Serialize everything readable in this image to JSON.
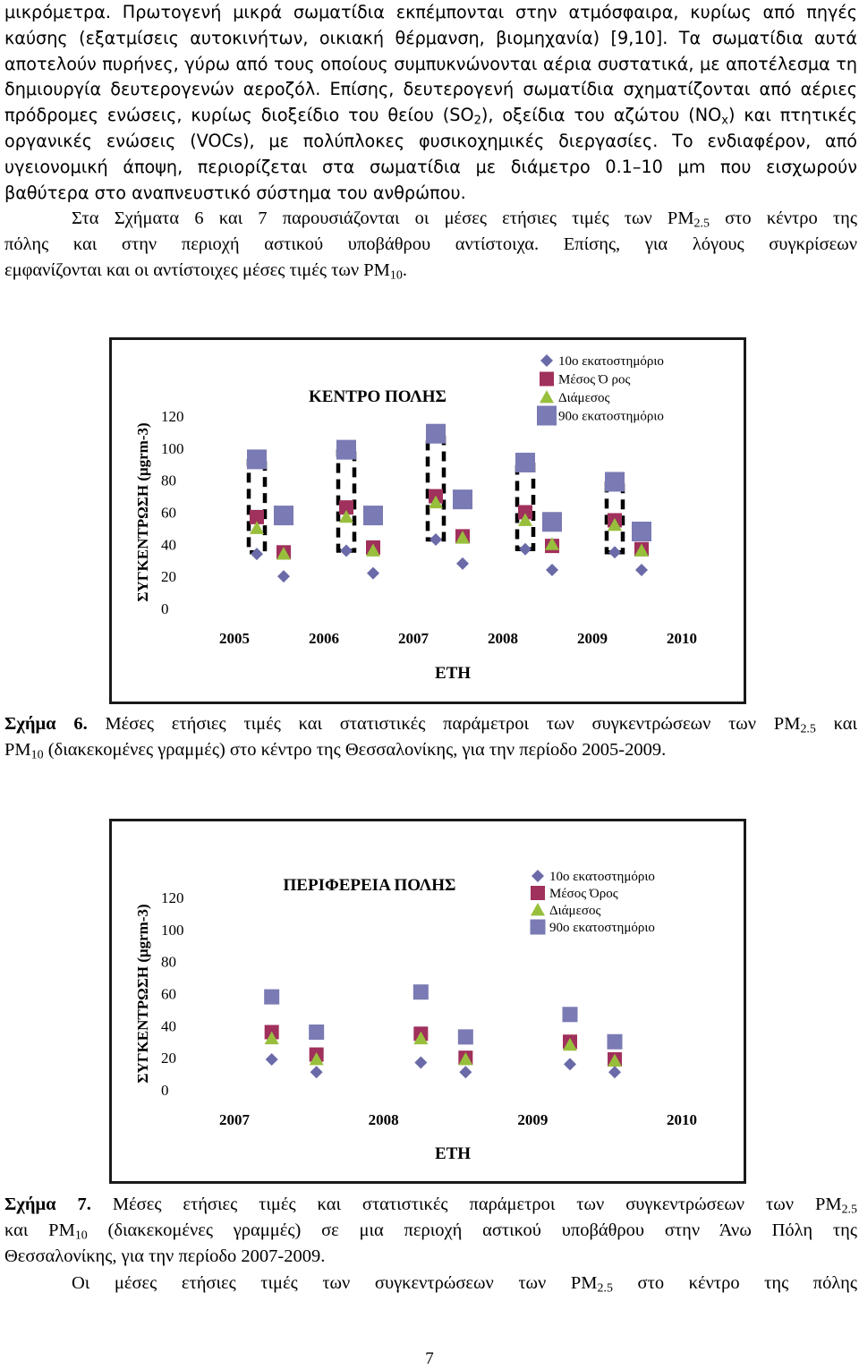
{
  "body_text": {
    "p1": {
      "l1": "μικρόμετρα. Πρωτογενή μικρά σωματίδια εκπέμπονται στην ατμόσφαιρα, κυρίως από πηγές",
      "l2": "καύσης (εξατμίσεις αυτοκινήτων, οικιακή θέρμανση, βιομηχανία) [9,10]. Τα σωματίδια αυτά",
      "l3": "αποτελούν πυρήνες, γύρω από τους οποίους συμπυκνώνονται αέρια συστατικά, με αποτέλεσμα τη",
      "l4": "δημιουργία δευτερογενών αεροζόλ. Επίσης, δευτερογενή σωματίδια σχηματίζονται από αέριες",
      "l5a": "πρόδρομες ενώσεις, κυρίως διοξείδιο του θείου (SO",
      "l5b": "2",
      "l5c": "), οξείδια του αζώτου (NO",
      "l5d": "x",
      "l5e": ") και πτητικές",
      "l6": "οργανικές ενώσεις (VOCs), με πολύπλοκες φυσικοχημικές διεργασίες. Το ενδιαφέρον, από",
      "l7": "υγειονομική άποψη, περιορίζεται στα σωματίδια με διάμετρο 0.1–10 μm που εισχωρούν",
      "l8": "βαθύτερα στο αναπνευστικό σύστημα του ανθρώπου."
    },
    "p2": {
      "l1a": "Στα Σχήματα 6 και 7 παρουσιάζονται οι μέσες ετήσιες τιμές των PM",
      "l1b": "2.5",
      "l1c": " στο κέντρο της",
      "l2": "πόλης και στην περιοχή αστικού υποβάθρου αντίστοιχα. Επίσης, για λόγους συγκρίσεων",
      "l3a": "εμφανίζονται και οι αντίστοιχες μέσες τιμές των PM",
      "l3b": "10",
      "l3c": "."
    },
    "p3": {
      "a": "Οι μέσες ετήσιες τιμές των συγκεντρώσεων των PM",
      "b": "2.5",
      "c": " στο κέντρο της πόλης"
    }
  },
  "figure6": {
    "caption_label": "Σχήμα 6.",
    "caption_a": " Μέσες ετήσιες τιμές και στατιστικές παράμετροι των συγκεντρώσεων των PM",
    "caption_b": "2.5",
    "caption_c": " και",
    "caption_d": "PM",
    "caption_e": "10",
    "caption_f": " (διακεκομένες γραμμές) στο κέντρο της Θεσσαλονίκης, για την περίοδο 2005-2009."
  },
  "figure7": {
    "caption_label": "Σχήμα 7.",
    "caption_a": " Μέσες ετήσιες τιμές και στατιστικές παράμετροι των συγκεντρώσεων των PM",
    "caption_b": "2.5",
    "caption_c": "και PM",
    "caption_d": "10",
    "caption_e": " (διακεκομένες γραμμές) σε μια περιοχή αστικού υποβάθρου στην Άνω Πόλη της",
    "caption_f": "Θεσσαλονίκης, για την περίοδο 2007-2009."
  },
  "page_number": "7",
  "colors": {
    "p10": "#6a6aa8",
    "mean": "#a0305c",
    "median": "#98bf3c",
    "p90": "#7a7ab4",
    "dash": "#000000"
  },
  "chart_data": [
    {
      "type": "scatter",
      "title": "ΚΕΝΤΡΟ ΠΟΛΗΣ",
      "xlabel": "ΕΤΗ",
      "ylabel": "ΣΥΓΚΕΝΤΡΩΣΗ (μgrm-3)",
      "x_ticks": [
        "2005",
        "2006",
        "2007",
        "2008",
        "2009",
        "2010"
      ],
      "y_ticks": [
        "0",
        "20",
        "40",
        "60",
        "80",
        "100",
        "120"
      ],
      "xlim": [
        2005,
        2010
      ],
      "ylim": [
        0,
        120
      ],
      "legend_position": "top-right",
      "legend": [
        "10ο εκατοστημόριο",
        "Μέσος Ό ρος",
        "Διάμεσος",
        "90ο εκατοστημόριο"
      ],
      "x": [
        2005.25,
        2005.55,
        2006.25,
        2006.55,
        2007.25,
        2007.55,
        2008.25,
        2008.55,
        2009.25,
        2009.55
      ],
      "series": [
        {
          "name": "10ο εκατοστημόριο",
          "marker": "diamond",
          "values": [
            34,
            20,
            36,
            22,
            43,
            28,
            37,
            24,
            35,
            24
          ]
        },
        {
          "name": "Μέσος Ό ρος",
          "marker": "square",
          "values": [
            57,
            35,
            63,
            38,
            70,
            45,
            60,
            39,
            55,
            37
          ]
        },
        {
          "name": "Διάμεσος",
          "marker": "triangle",
          "values": [
            50,
            34,
            57,
            36,
            66,
            44,
            55,
            40,
            52,
            36
          ]
        },
        {
          "name": "90ο εκατοστημόριο",
          "marker": "square-large",
          "values": [
            93,
            58,
            99,
            58,
            109,
            68,
            91,
            54,
            79,
            48
          ]
        }
      ],
      "pm10_ranges": [
        {
          "x": 2005.25,
          "low": 35,
          "high": 92
        },
        {
          "x": 2006.25,
          "low": 36,
          "high": 98
        },
        {
          "x": 2007.25,
          "low": 43,
          "high": 108
        },
        {
          "x": 2008.25,
          "low": 37,
          "high": 91
        },
        {
          "x": 2009.25,
          "low": 35,
          "high": 78
        }
      ]
    },
    {
      "type": "scatter",
      "title": "ΠΕΡΙΦΕΡΕΙΑ ΠΟΛΗΣ",
      "xlabel": "ΕΤΗ",
      "ylabel": "ΣΥΓΚΕΝΤΡΩΣΗ (μgrm-3)",
      "x_ticks": [
        "2007",
        "2008",
        "2009",
        "2010"
      ],
      "y_ticks": [
        "0",
        "20",
        "40",
        "60",
        "80",
        "100",
        "120"
      ],
      "xlim": [
        2007,
        2010
      ],
      "ylim": [
        0,
        120
      ],
      "legend_position": "top-right",
      "legend": [
        "10ο εκατοστημόριο",
        "Μέσος Όρος",
        "Διάμεσος",
        "90ο εκατοστημόριο"
      ],
      "x": [
        2007.25,
        2007.55,
        2008.25,
        2008.55,
        2009.25,
        2009.55
      ],
      "series": [
        {
          "name": "10ο εκατοστημόριο",
          "marker": "diamond",
          "values": [
            19,
            11,
            17,
            11,
            16,
            11
          ]
        },
        {
          "name": "Μέσος Όρος",
          "marker": "square",
          "values": [
            36,
            22,
            35,
            20,
            30,
            19
          ]
        },
        {
          "name": "Διάμεσος",
          "marker": "triangle",
          "values": [
            32,
            19,
            32,
            19,
            28,
            18
          ]
        },
        {
          "name": "90ο εκατοστημόριο",
          "marker": "square",
          "values": [
            58,
            36,
            61,
            33,
            47,
            30
          ]
        }
      ]
    }
  ]
}
